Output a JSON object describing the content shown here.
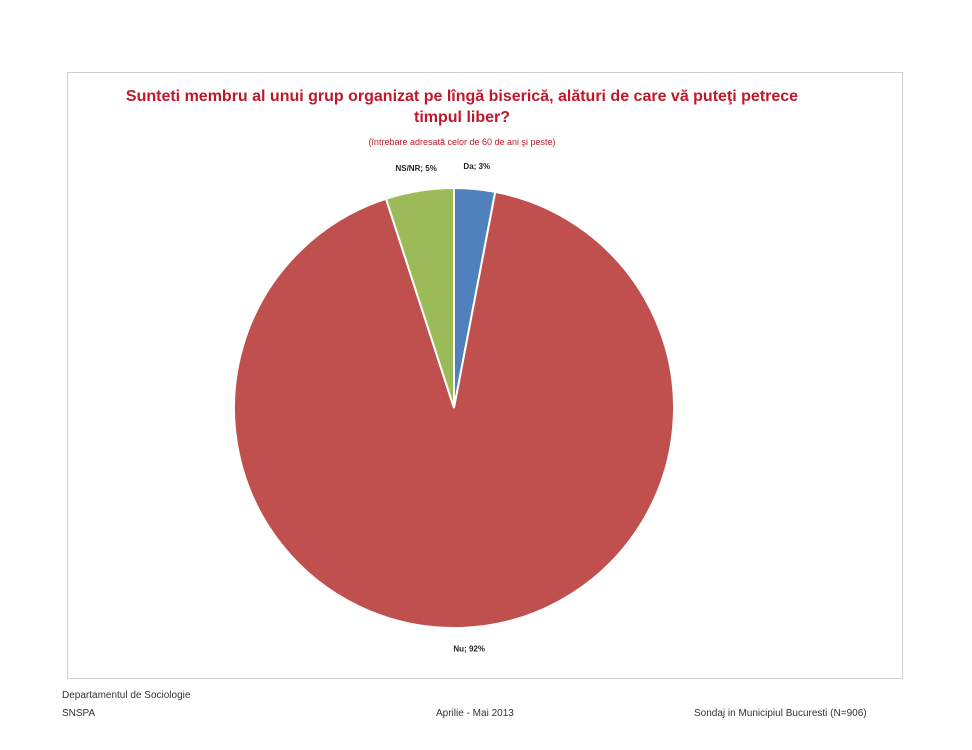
{
  "chart_data": {
    "type": "pie",
    "title": "Sunteti membru al unui grup organizat pe lîngă biserică, alături de care vă puteţi petrece timpul liber?",
    "subtitle": "(întrebare adresată celor de 60 de ani şi peste)",
    "categories": [
      "Da",
      "Nu",
      "NS/NR"
    ],
    "values": [
      3,
      92,
      5
    ],
    "value_labels": [
      "Da; 3%",
      "Nu; 92%",
      "NS/NR; 5%"
    ],
    "colors": [
      "#4f81bd",
      "#c0504d",
      "#9bbb59"
    ]
  },
  "footer": {
    "left": [
      "Departamentul de Sociologie",
      "SNSPA"
    ],
    "center": "Aprilie - Mai 2013",
    "right": "Sondaj in Municipiul Bucuresti (N=906)"
  }
}
